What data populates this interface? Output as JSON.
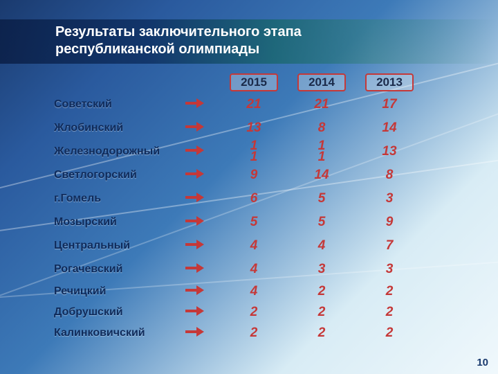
{
  "title_line1": "Результаты заключительного этапа",
  "title_line2": "республиканской олимпиады",
  "years": [
    "2015",
    "2014",
    "2013"
  ],
  "value_color": "#c53838",
  "region_color": "#0e2a5a",
  "year_border": "#c53838",
  "page_number": "10",
  "rows": [
    {
      "region": "Советский",
      "a": "21",
      "b": "21",
      "c": "17"
    },
    {
      "region": "Жлобинский",
      "a": "13",
      "b": "8",
      "c": "14"
    },
    {
      "region": "Железнодорожный",
      "a_top": "1",
      "a_bot": "1",
      "b_top": "1",
      "b_bot": "1",
      "c": "13"
    },
    {
      "region": "Светлогорский",
      "a": "9",
      "b": "14",
      "c": "8"
    },
    {
      "region": "г.Гомель",
      "a": "6",
      "b": "5",
      "c": "3"
    },
    {
      "region": "Мозырский",
      "a": "5",
      "b": "5",
      "c": "9"
    },
    {
      "region": "Центральный",
      "a": "4",
      "b": "4",
      "c": "7"
    },
    {
      "region": "Рогачевский",
      "a": "4",
      "b": "3",
      "c": "3"
    },
    {
      "region": "Речицкий",
      "a": "4",
      "b": "2",
      "c": "2"
    },
    {
      "region": "Добрушский",
      "a": "2",
      "b": "2",
      "c": "2"
    },
    {
      "region": "Калинковичский",
      "a": "2",
      "b": "2",
      "c": "2"
    }
  ]
}
